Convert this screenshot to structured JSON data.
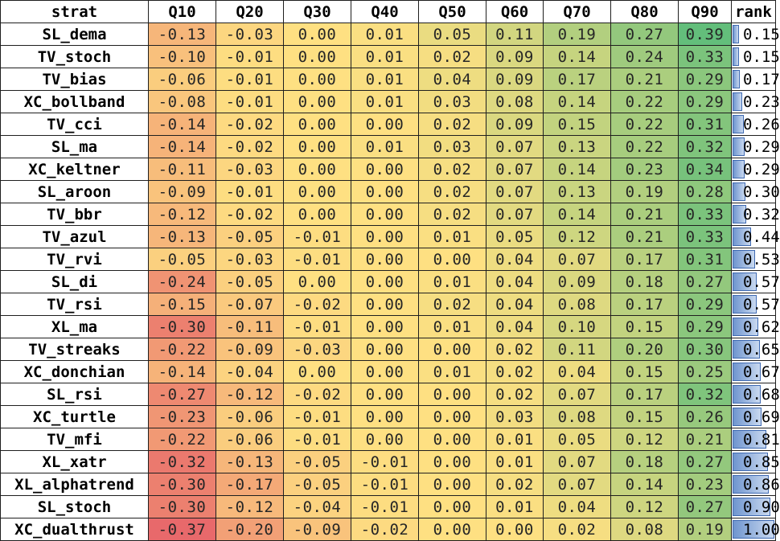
{
  "header": [
    "strat",
    "Q10",
    "Q20",
    "Q30",
    "Q40",
    "Q50",
    "Q60",
    "Q70",
    "Q80",
    "Q90",
    "rank"
  ],
  "rows": [
    {
      "strat": "SL_dema",
      "q": [
        "-0.13",
        "-0.03",
        "0.00",
        "0.01",
        "0.05",
        "0.11",
        "0.19",
        "0.27",
        "0.39"
      ],
      "rank": "0.15"
    },
    {
      "strat": "TV_stoch",
      "q": [
        "-0.10",
        "-0.01",
        "0.00",
        "0.01",
        "0.02",
        "0.09",
        "0.14",
        "0.24",
        "0.33"
      ],
      "rank": "0.15"
    },
    {
      "strat": "TV_bias",
      "q": [
        "-0.06",
        "-0.01",
        "0.00",
        "0.01",
        "0.04",
        "0.09",
        "0.17",
        "0.21",
        "0.29"
      ],
      "rank": "0.17"
    },
    {
      "strat": "XC_bollband",
      "q": [
        "-0.08",
        "-0.01",
        "0.00",
        "0.01",
        "0.03",
        "0.08",
        "0.14",
        "0.22",
        "0.29"
      ],
      "rank": "0.23"
    },
    {
      "strat": "TV_cci",
      "q": [
        "-0.14",
        "-0.02",
        "0.00",
        "0.00",
        "0.02",
        "0.09",
        "0.15",
        "0.22",
        "0.31"
      ],
      "rank": "0.26"
    },
    {
      "strat": "SL_ma",
      "q": [
        "-0.14",
        "-0.02",
        "0.00",
        "0.01",
        "0.03",
        "0.07",
        "0.13",
        "0.22",
        "0.32"
      ],
      "rank": "0.29"
    },
    {
      "strat": "XC_keltner",
      "q": [
        "-0.11",
        "-0.03",
        "0.00",
        "0.00",
        "0.02",
        "0.07",
        "0.14",
        "0.23",
        "0.34"
      ],
      "rank": "0.29"
    },
    {
      "strat": "SL_aroon",
      "q": [
        "-0.09",
        "-0.01",
        "0.00",
        "0.00",
        "0.02",
        "0.07",
        "0.13",
        "0.19",
        "0.28"
      ],
      "rank": "0.30"
    },
    {
      "strat": "TV_bbr",
      "q": [
        "-0.12",
        "-0.02",
        "0.00",
        "0.00",
        "0.02",
        "0.07",
        "0.14",
        "0.21",
        "0.33"
      ],
      "rank": "0.32"
    },
    {
      "strat": "TV_azul",
      "q": [
        "-0.13",
        "-0.05",
        "-0.01",
        "0.00",
        "0.01",
        "0.05",
        "0.12",
        "0.21",
        "0.33"
      ],
      "rank": "0.44"
    },
    {
      "strat": "TV_rvi",
      "q": [
        "-0.05",
        "-0.03",
        "-0.01",
        "0.00",
        "0.00",
        "0.04",
        "0.07",
        "0.17",
        "0.31"
      ],
      "rank": "0.53"
    },
    {
      "strat": "SL_di",
      "q": [
        "-0.24",
        "-0.05",
        "0.00",
        "0.00",
        "0.01",
        "0.04",
        "0.09",
        "0.18",
        "0.27"
      ],
      "rank": "0.57"
    },
    {
      "strat": "TV_rsi",
      "q": [
        "-0.15",
        "-0.07",
        "-0.02",
        "0.00",
        "0.02",
        "0.04",
        "0.08",
        "0.17",
        "0.29"
      ],
      "rank": "0.57"
    },
    {
      "strat": "XL_ma",
      "q": [
        "-0.30",
        "-0.11",
        "-0.01",
        "0.00",
        "0.01",
        "0.04",
        "0.10",
        "0.15",
        "0.29"
      ],
      "rank": "0.62"
    },
    {
      "strat": "TV_streaks",
      "q": [
        "-0.22",
        "-0.09",
        "-0.03",
        "0.00",
        "0.00",
        "0.02",
        "0.11",
        "0.20",
        "0.30"
      ],
      "rank": "0.65"
    },
    {
      "strat": "XC_donchian",
      "q": [
        "-0.14",
        "-0.04",
        "0.00",
        "0.00",
        "0.01",
        "0.02",
        "0.04",
        "0.15",
        "0.25"
      ],
      "rank": "0.67"
    },
    {
      "strat": "SL_rsi",
      "q": [
        "-0.27",
        "-0.12",
        "-0.02",
        "0.00",
        "0.00",
        "0.02",
        "0.07",
        "0.17",
        "0.32"
      ],
      "rank": "0.68"
    },
    {
      "strat": "XC_turtle",
      "q": [
        "-0.23",
        "-0.06",
        "-0.01",
        "0.00",
        "0.00",
        "0.03",
        "0.08",
        "0.15",
        "0.26"
      ],
      "rank": "0.69"
    },
    {
      "strat": "TV_mfi",
      "q": [
        "-0.22",
        "-0.06",
        "-0.01",
        "0.00",
        "0.00",
        "0.01",
        "0.05",
        "0.12",
        "0.21"
      ],
      "rank": "0.81"
    },
    {
      "strat": "XL_xatr",
      "q": [
        "-0.32",
        "-0.13",
        "-0.05",
        "-0.01",
        "0.00",
        "0.01",
        "0.07",
        "0.18",
        "0.27"
      ],
      "rank": "0.85"
    },
    {
      "strat": "XL_alphatrend",
      "q": [
        "-0.30",
        "-0.17",
        "-0.05",
        "-0.01",
        "0.00",
        "0.02",
        "0.07",
        "0.14",
        "0.23"
      ],
      "rank": "0.86"
    },
    {
      "strat": "SL_stoch",
      "q": [
        "-0.30",
        "-0.12",
        "-0.04",
        "-0.01",
        "0.00",
        "0.01",
        "0.04",
        "0.12",
        "0.27"
      ],
      "rank": "0.90"
    },
    {
      "strat": "XC_dualthrust",
      "q": [
        "-0.37",
        "-0.20",
        "-0.09",
        "-0.02",
        "0.00",
        "0.00",
        "0.02",
        "0.08",
        "0.19"
      ],
      "rank": "1.00"
    }
  ],
  "colors": {
    "low": "#e8696b",
    "mid": "#fee082",
    "high": "#63be7b",
    "bar_fill": "#6f95cf",
    "bar_border": "#3f6ab2",
    "grid": "#1f1f1f"
  }
}
